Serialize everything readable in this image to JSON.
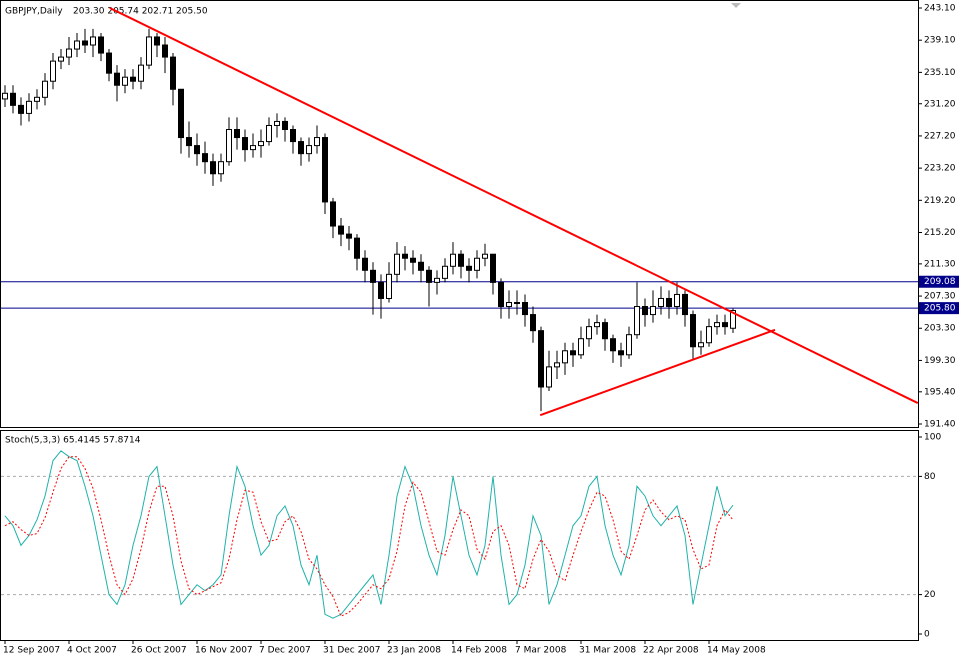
{
  "chart_data": {
    "type": "candlestick",
    "title": "GBPJPY,Daily",
    "ohlc_label": "203.30 205.74 202.71 205.50",
    "categories": [
      "12 Sep 2007",
      null,
      null,
      null,
      null,
      null,
      null,
      null,
      "4 Oct 2007",
      null,
      null,
      null,
      null,
      null,
      null,
      null,
      "26 Oct 2007",
      null,
      null,
      null,
      null,
      null,
      null,
      null,
      "16 Nov 2007",
      null,
      null,
      null,
      null,
      null,
      null,
      null,
      "7 Dec 2007",
      null,
      null,
      null,
      null,
      null,
      null,
      null,
      "31 Dec 2007",
      null,
      null,
      null,
      null,
      null,
      null,
      null,
      "23 Jan 2008",
      null,
      null,
      null,
      null,
      null,
      null,
      null,
      "14 Feb 2008",
      null,
      null,
      null,
      null,
      null,
      null,
      null,
      "7 Mar 2008",
      null,
      null,
      null,
      null,
      null,
      null,
      null,
      "31 Mar 2008",
      null,
      null,
      null,
      null,
      null,
      null,
      null,
      "22 Apr 2008",
      null,
      null,
      null,
      null,
      null,
      null,
      null,
      "14 May 2008",
      null,
      null,
      null
    ],
    "open": [
      231.8,
      232.5,
      231,
      230,
      231.5,
      232,
      234,
      236.5,
      237,
      238,
      239,
      238.5,
      239.5,
      237.5,
      235,
      233.5,
      234.5,
      234,
      236,
      239.5,
      238.5,
      237,
      233,
      227,
      226,
      225,
      224,
      222.5,
      224,
      228,
      227,
      225.5,
      226,
      226.5,
      228.5,
      229,
      228,
      226.5,
      225,
      226,
      227,
      219,
      216,
      215,
      214.5,
      212,
      210.5,
      209,
      207,
      210,
      212.5,
      212,
      211.5,
      210.5,
      209,
      209.5,
      211,
      212.5,
      211,
      210.5,
      212,
      212.5,
      209,
      206,
      206.5,
      206.5,
      205,
      203,
      196,
      198.5,
      199,
      200.5,
      200,
      202,
      203.5,
      204,
      202,
      200.5,
      200,
      202.5,
      206,
      205,
      206,
      207,
      206,
      207.5,
      205,
      201,
      201.5,
      203.5,
      204,
      203.3
    ],
    "high": [
      233.5,
      233.5,
      232,
      232.5,
      233,
      235,
      237.5,
      238,
      239.5,
      240,
      240.5,
      240.5,
      240,
      238,
      236,
      235.5,
      235.5,
      237,
      240.5,
      240,
      239.5,
      237.5,
      233,
      229,
      227.5,
      226.5,
      225,
      225,
      229.5,
      229.5,
      228,
      227.5,
      228,
      229.5,
      230,
      229.5,
      228.5,
      227,
      227,
      228.5,
      227.5,
      219.5,
      217,
      216,
      215,
      213,
      211.5,
      210,
      211.5,
      214,
      213.5,
      213,
      212.5,
      211,
      210.5,
      212,
      214,
      213,
      212,
      213,
      213.8,
      212.5,
      209.5,
      208,
      208,
      207.5,
      206,
      203.5,
      200.5,
      200.5,
      201.5,
      201.5,
      203.5,
      204.5,
      205,
      204.5,
      202.5,
      201.5,
      203.5,
      209,
      207,
      208,
      208.5,
      208,
      209,
      208,
      205.5,
      203,
      204.5,
      205,
      205,
      205.74
    ],
    "low": [
      230.8,
      230,
      228.5,
      229,
      230.5,
      231,
      233,
      235.5,
      236,
      237,
      237.5,
      237,
      236.5,
      234,
      231.5,
      232.5,
      233,
      233,
      235.5,
      237,
      235,
      231,
      225,
      224.5,
      223.5,
      222.5,
      221,
      221.5,
      223.5,
      225.5,
      224,
      224.5,
      224.5,
      226,
      227,
      226.5,
      225,
      223.5,
      224,
      225,
      217.5,
      214.5,
      213.5,
      213,
      210.5,
      209,
      205,
      204.5,
      206.5,
      209,
      210.5,
      210,
      209,
      206,
      207.5,
      209,
      210,
      209.5,
      209,
      209.5,
      211,
      207.5,
      204.5,
      204.5,
      205,
      203.5,
      201.5,
      193,
      195.5,
      197,
      197.5,
      198.5,
      199.5,
      201,
      202.5,
      200.5,
      199,
      198.5,
      199.5,
      202,
      203.5,
      204,
      205,
      204.5,
      205,
      203.5,
      199.5,
      200,
      201,
      202.5,
      202.5,
      202.71
    ],
    "close": [
      232.5,
      231,
      230,
      231.5,
      232,
      234,
      236.5,
      237,
      238,
      239,
      238.5,
      239.5,
      237.5,
      235,
      233.5,
      234.5,
      234,
      236,
      239.5,
      238.5,
      237,
      233,
      227,
      226,
      225,
      224,
      222.5,
      224,
      228,
      227,
      225.5,
      226,
      226.5,
      228.5,
      229,
      228,
      226.5,
      225,
      226,
      227,
      219,
      216,
      215,
      214.5,
      212,
      210.5,
      209,
      207,
      210,
      212.5,
      212,
      211.5,
      210.5,
      209,
      209.5,
      211,
      212.5,
      211,
      210.5,
      212,
      212.5,
      209,
      206,
      206.5,
      206.5,
      205,
      203,
      196,
      198.5,
      199,
      200.5,
      200,
      202,
      203.5,
      204,
      202,
      200.5,
      200,
      202.5,
      206,
      205,
      206,
      207,
      206,
      207.5,
      205,
      201,
      201.5,
      203.5,
      204,
      203.5,
      205.5
    ],
    "ylim": [
      191.4,
      243.1
    ],
    "yticks": [
      {
        "value": 243.1,
        "label": "243.10"
      },
      {
        "value": 239.1,
        "label": "239.10"
      },
      {
        "value": 235.1,
        "label": "235.10"
      },
      {
        "value": 231.2,
        "label": "231.20"
      },
      {
        "value": 227.2,
        "label": "227.20"
      },
      {
        "value": 223.2,
        "label": "223.20"
      },
      {
        "value": 219.2,
        "label": "219.20"
      },
      {
        "value": 215.2,
        "label": "215.20"
      },
      {
        "value": 211.3,
        "label": "211.30"
      },
      {
        "value": 207.3,
        "label": "207.30"
      },
      {
        "value": 203.3,
        "label": "203.30"
      },
      {
        "value": 199.3,
        "label": "199.30"
      },
      {
        "value": 195.4,
        "label": "195.40"
      },
      {
        "value": 191.4,
        "label": "191.40"
      }
    ],
    "hlines": [
      {
        "value": 209.08,
        "label": "209.08",
        "color": "#00008b"
      },
      {
        "value": 205.8,
        "label": "205.80",
        "color": "#00008b"
      }
    ],
    "trendlines": [
      {
        "color": "#ff0000",
        "x": [
          13.1,
          114.1
        ],
        "y": [
          243.1,
          194.0
        ]
      },
      {
        "color": "#ff0000",
        "x": [
          66.9,
          96.25
        ],
        "y": [
          192.5,
          203.1
        ]
      }
    ],
    "stochastic": {
      "label": "Stoch(5,3,3) 65.4145 57.8714",
      "ylim": [
        0,
        100
      ],
      "yticks": [
        100,
        80,
        20,
        0
      ],
      "levels": [
        80,
        20
      ],
      "series": [
        {
          "color": "#20b2aa",
          "values": [
            60,
            55,
            45,
            50,
            58,
            70,
            88,
            93,
            90,
            88,
            75,
            60,
            40,
            20,
            15,
            25,
            45,
            60,
            80,
            85,
            60,
            35,
            15,
            20,
            25,
            22,
            25,
            30,
            60,
            85,
            75,
            55,
            40,
            45,
            60,
            65,
            55,
            35,
            25,
            40,
            10,
            8,
            10,
            15,
            20,
            25,
            30,
            15,
            40,
            70,
            85,
            75,
            55,
            40,
            30,
            50,
            80,
            60,
            40,
            30,
            45,
            80,
            40,
            15,
            20,
            35,
            60,
            50,
            15,
            25,
            40,
            55,
            60,
            75,
            80,
            55,
            40,
            30,
            45,
            75,
            70,
            60,
            55,
            60,
            65,
            50,
            15,
            35,
            55,
            75,
            60,
            65.4145
          ]
        },
        {
          "color": "#ff0000",
          "values": [
            55,
            57,
            53,
            50,
            51,
            59,
            72,
            84,
            90,
            90,
            84,
            74,
            58,
            40,
            25,
            20,
            28,
            43,
            62,
            75,
            75,
            60,
            37,
            23,
            20,
            22,
            24,
            26,
            38,
            58,
            73,
            72,
            57,
            47,
            48,
            57,
            60,
            52,
            38,
            33,
            25,
            19,
            9,
            11,
            15,
            20,
            25,
            23,
            28,
            42,
            65,
            77,
            72,
            57,
            42,
            40,
            53,
            63,
            60,
            43,
            38,
            52,
            55,
            45,
            25,
            23,
            38,
            48,
            42,
            30,
            27,
            40,
            52,
            63,
            72,
            70,
            58,
            42,
            38,
            50,
            63,
            68,
            62,
            58,
            60,
            58,
            43,
            33,
            35,
            55,
            63,
            57.8714
          ]
        }
      ]
    }
  }
}
